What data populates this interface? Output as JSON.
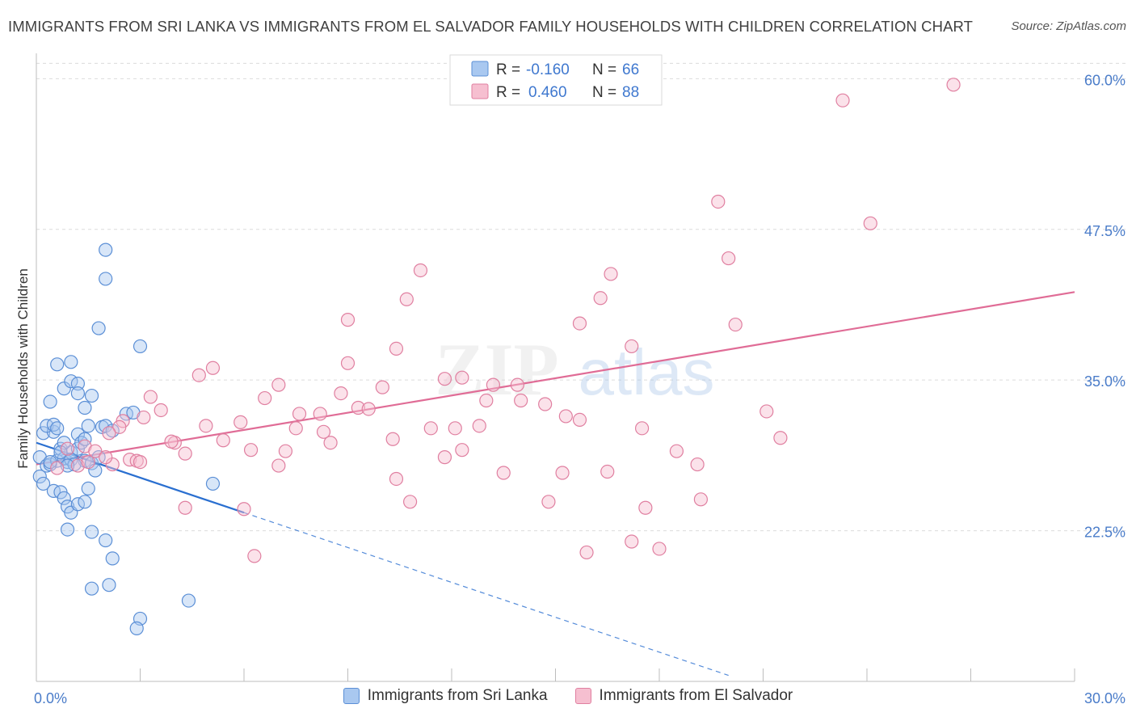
{
  "title": "IMMIGRANTS FROM SRI LANKA VS IMMIGRANTS FROM EL SALVADOR FAMILY HOUSEHOLDS WITH CHILDREN CORRELATION CHART",
  "source": "Source: ZipAtlas.com",
  "watermark": {
    "zip": "ZIP",
    "atlas": "atlas"
  },
  "colors": {
    "blue_fill": "#a9c8f0",
    "blue_stroke": "#5b8fd6",
    "blue_line": "#2a6fd0",
    "pink_fill": "#f6bfd0",
    "pink_stroke": "#e07fa0",
    "pink_line": "#e06c96",
    "tick_text": "#4a7cc9"
  },
  "stats_legend": [
    {
      "r_label": "R =",
      "r_value": "-0.160",
      "n_label": "N =",
      "n_value": "66"
    },
    {
      "r_label": "R =",
      "r_value": "0.460",
      "n_label": "N =",
      "n_value": "88"
    }
  ],
  "chart_data": {
    "type": "scatter",
    "title": "IMMIGRANTS FROM SRI LANKA VS IMMIGRANTS FROM EL SALVADOR FAMILY HOUSEHOLDS WITH CHILDREN CORRELATION CHART",
    "xlabel": "",
    "ylabel": "Family Households with Children",
    "xlim": [
      0,
      30
    ],
    "ylim": [
      10,
      61.5
    ],
    "x_tick_labels": [
      {
        "value": 0,
        "label": "0.0%"
      },
      {
        "value": 30,
        "label": "30.0%"
      }
    ],
    "y_tick_labels": [
      {
        "value": 22.5,
        "label": "22.5%"
      },
      {
        "value": 35,
        "label": "35.0%"
      },
      {
        "value": 47.5,
        "label": "47.5%"
      },
      {
        "value": 60,
        "label": "60.0%"
      }
    ],
    "series": [
      {
        "name": "Immigrants from Sri Lanka",
        "color": "blue",
        "trend": {
          "x0": 0,
          "y0": 29.8,
          "x1": 6.0,
          "y1": 24.0,
          "dash_to_x": 20.0,
          "dash_to_y": 10.5
        },
        "points": [
          [
            0.1,
            28.6
          ],
          [
            0.2,
            30.6
          ],
          [
            0.3,
            27.9
          ],
          [
            0.5,
            30.7
          ],
          [
            0.7,
            29.3
          ],
          [
            0.9,
            28.2
          ],
          [
            1.2,
            30.5
          ],
          [
            1.5,
            31.2
          ],
          [
            1.9,
            31.1
          ],
          [
            0.1,
            27.0
          ],
          [
            0.2,
            26.4
          ],
          [
            0.4,
            28.0
          ],
          [
            0.6,
            28.3
          ],
          [
            0.8,
            28.5
          ],
          [
            1.0,
            29.0
          ],
          [
            1.2,
            29.3
          ],
          [
            1.4,
            28.3
          ],
          [
            1.6,
            28.1
          ],
          [
            0.3,
            31.2
          ],
          [
            0.5,
            31.3
          ],
          [
            0.6,
            31.0
          ],
          [
            0.8,
            29.8
          ],
          [
            1.0,
            28.4
          ],
          [
            1.3,
            29.8
          ],
          [
            1.4,
            30.1
          ],
          [
            1.8,
            28.6
          ],
          [
            0.4,
            33.2
          ],
          [
            0.8,
            34.3
          ],
          [
            1.0,
            34.9
          ],
          [
            1.2,
            34.7
          ],
          [
            1.2,
            33.9
          ],
          [
            1.6,
            33.7
          ],
          [
            0.6,
            36.3
          ],
          [
            1.0,
            36.5
          ],
          [
            1.4,
            32.7
          ],
          [
            1.8,
            39.3
          ],
          [
            2.0,
            43.4
          ],
          [
            2.0,
            45.8
          ],
          [
            3.0,
            37.8
          ],
          [
            2.6,
            32.2
          ],
          [
            2.8,
            32.3
          ],
          [
            2.0,
            31.2
          ],
          [
            2.2,
            30.8
          ],
          [
            0.5,
            25.8
          ],
          [
            0.7,
            25.7
          ],
          [
            0.8,
            25.2
          ],
          [
            0.9,
            24.5
          ],
          [
            1.0,
            24.0
          ],
          [
            1.2,
            24.7
          ],
          [
            1.4,
            24.9
          ],
          [
            1.5,
            26.0
          ],
          [
            0.9,
            22.6
          ],
          [
            1.6,
            22.4
          ],
          [
            2.0,
            21.7
          ],
          [
            2.2,
            20.2
          ],
          [
            2.1,
            18.0
          ],
          [
            1.6,
            17.7
          ],
          [
            3.0,
            15.2
          ],
          [
            2.9,
            14.4
          ],
          [
            4.4,
            16.7
          ],
          [
            5.1,
            26.4
          ],
          [
            0.7,
            29.0
          ],
          [
            1.1,
            28.0
          ],
          [
            0.4,
            28.2
          ],
          [
            1.7,
            27.5
          ],
          [
            0.9,
            27.9
          ]
        ]
      },
      {
        "name": "Immigrants from El Salvador",
        "color": "pink",
        "trend": {
          "x0": 0,
          "y0": 28.0,
          "x1": 30.0,
          "y1": 42.3
        },
        "points": [
          [
            26.5,
            59.5
          ],
          [
            23.3,
            58.2
          ],
          [
            19.7,
            49.8
          ],
          [
            24.1,
            48.0
          ],
          [
            20.0,
            45.1
          ],
          [
            16.6,
            43.8
          ],
          [
            11.1,
            44.1
          ],
          [
            10.7,
            41.7
          ],
          [
            16.3,
            41.8
          ],
          [
            15.7,
            39.7
          ],
          [
            20.2,
            39.6
          ],
          [
            9.0,
            40.0
          ],
          [
            17.2,
            37.8
          ],
          [
            10.4,
            37.6
          ],
          [
            9.0,
            36.4
          ],
          [
            5.1,
            36.0
          ],
          [
            4.7,
            35.4
          ],
          [
            11.8,
            35.1
          ],
          [
            12.3,
            35.2
          ],
          [
            13.2,
            34.6
          ],
          [
            13.9,
            34.6
          ],
          [
            7.0,
            34.6
          ],
          [
            10.0,
            34.4
          ],
          [
            8.8,
            33.9
          ],
          [
            6.6,
            33.5
          ],
          [
            13.0,
            33.3
          ],
          [
            14.0,
            33.3
          ],
          [
            14.7,
            33.0
          ],
          [
            3.3,
            33.6
          ],
          [
            3.6,
            32.5
          ],
          [
            9.3,
            32.7
          ],
          [
            9.6,
            32.6
          ],
          [
            7.6,
            32.2
          ],
          [
            8.2,
            32.2
          ],
          [
            15.3,
            32.0
          ],
          [
            15.7,
            31.7
          ],
          [
            3.1,
            31.9
          ],
          [
            2.5,
            31.6
          ],
          [
            2.4,
            31.1
          ],
          [
            4.9,
            31.2
          ],
          [
            5.9,
            31.5
          ],
          [
            7.5,
            31.0
          ],
          [
            8.3,
            30.7
          ],
          [
            11.4,
            31.0
          ],
          [
            12.1,
            31.0
          ],
          [
            12.8,
            31.2
          ],
          [
            17.5,
            31.0
          ],
          [
            21.1,
            32.4
          ],
          [
            21.5,
            30.2
          ],
          [
            2.1,
            30.6
          ],
          [
            5.4,
            30.0
          ],
          [
            4.0,
            29.8
          ],
          [
            3.9,
            29.9
          ],
          [
            8.5,
            29.8
          ],
          [
            10.3,
            30.1
          ],
          [
            6.2,
            29.2
          ],
          [
            7.2,
            29.1
          ],
          [
            12.3,
            29.2
          ],
          [
            11.8,
            28.6
          ],
          [
            18.5,
            29.1
          ],
          [
            4.3,
            28.9
          ],
          [
            1.4,
            29.5
          ],
          [
            1.7,
            29.1
          ],
          [
            2.7,
            28.4
          ],
          [
            2.9,
            28.3
          ],
          [
            0.6,
            27.7
          ],
          [
            1.2,
            27.9
          ],
          [
            2.2,
            28.0
          ],
          [
            7.0,
            27.9
          ],
          [
            13.5,
            27.3
          ],
          [
            15.2,
            27.3
          ],
          [
            16.5,
            27.4
          ],
          [
            19.1,
            28.0
          ],
          [
            10.4,
            26.8
          ],
          [
            10.8,
            24.9
          ],
          [
            14.8,
            24.9
          ],
          [
            17.6,
            24.4
          ],
          [
            4.3,
            24.4
          ],
          [
            6.0,
            24.3
          ],
          [
            19.2,
            25.1
          ],
          [
            6.3,
            20.4
          ],
          [
            15.9,
            20.7
          ],
          [
            17.2,
            21.6
          ],
          [
            18.0,
            21.0
          ],
          [
            3.0,
            28.2
          ],
          [
            2.0,
            28.6
          ],
          [
            0.9,
            29.3
          ],
          [
            1.5,
            28.2
          ]
        ]
      }
    ]
  },
  "legend": [
    {
      "label": "Immigrants from Sri Lanka",
      "color": "#a9c8f0",
      "border": "#5b8fd6"
    },
    {
      "label": "Immigrants from El Salvador",
      "color": "#f6bfd0",
      "border": "#e07fa0"
    }
  ]
}
